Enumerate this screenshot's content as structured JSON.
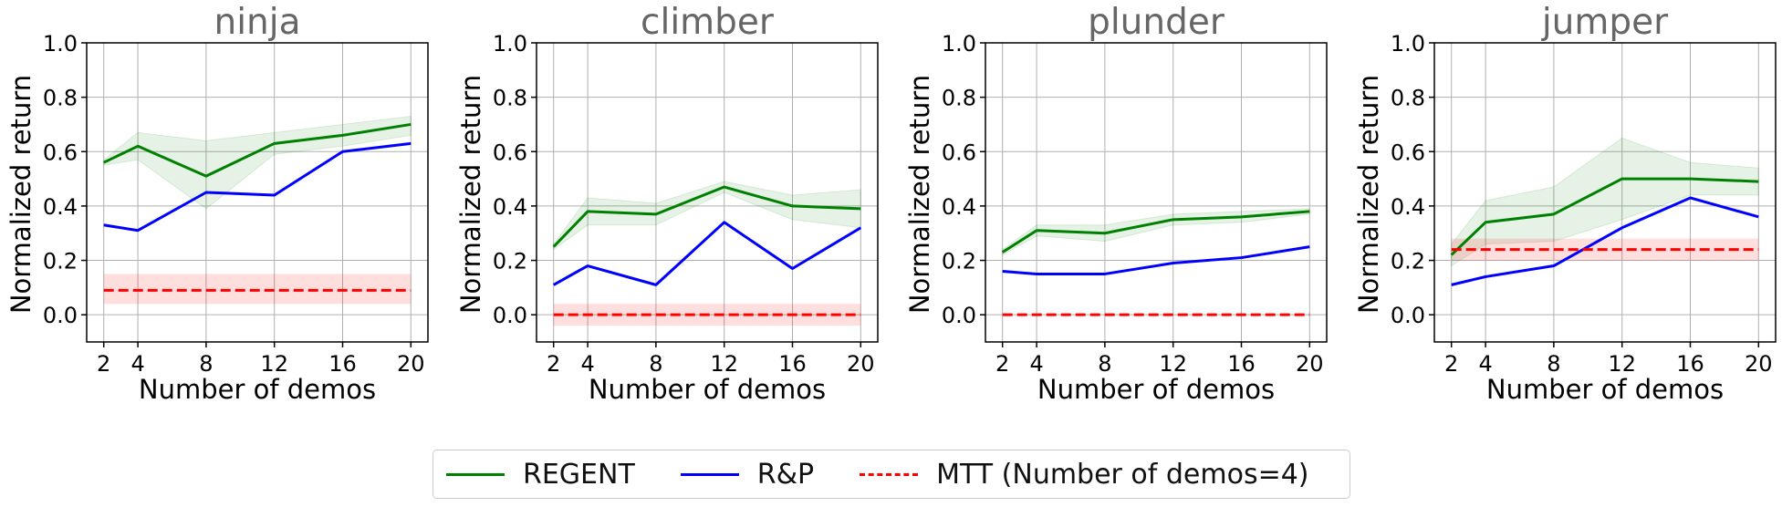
{
  "colors": {
    "regent": "#008000",
    "rp": "#0000ff",
    "mtt": "#ff0000",
    "title": "#666666",
    "grid": "#b0b0b0"
  },
  "legend": {
    "items": [
      {
        "label": "REGENT",
        "color": "#008000",
        "style": "solid"
      },
      {
        "label": "R&P",
        "color": "#0000ff",
        "style": "solid"
      },
      {
        "label": "MTT (Number of demos=4)",
        "color": "#ff0000",
        "style": "dashed"
      }
    ],
    "placement": "bottom-center"
  },
  "chart_data": [
    {
      "type": "line",
      "title": "ninja",
      "xlabel": "Number of demos",
      "ylabel": "Normalized return",
      "x": [
        2,
        4,
        8,
        12,
        16,
        20
      ],
      "xticks": [
        "2",
        "4",
        "8",
        "12",
        "16",
        "20"
      ],
      "yticks": [
        "0.0",
        "0.2",
        "0.4",
        "0.6",
        "0.8",
        "1.0"
      ],
      "xlim": [
        1,
        21
      ],
      "ylim": [
        -0.1,
        1.0
      ],
      "grid": true,
      "series": [
        {
          "name": "REGENT",
          "values": [
            0.56,
            0.62,
            0.51,
            0.63,
            0.66,
            0.7
          ],
          "band_low": [
            0.55,
            0.57,
            0.39,
            0.59,
            0.62,
            0.66
          ],
          "band_high": [
            0.57,
            0.67,
            0.64,
            0.67,
            0.7,
            0.73
          ]
        },
        {
          "name": "R&P",
          "values": [
            0.33,
            0.31,
            0.45,
            0.44,
            0.6,
            0.63
          ]
        },
        {
          "name": "MTT (Number of demos=4)",
          "constant": 0.09,
          "band_low": 0.04,
          "band_high": 0.15
        }
      ]
    },
    {
      "type": "line",
      "title": "climber",
      "xlabel": "Number of demos",
      "ylabel": "Normalized return",
      "x": [
        2,
        4,
        8,
        12,
        16,
        20
      ],
      "xticks": [
        "2",
        "4",
        "8",
        "12",
        "16",
        "20"
      ],
      "yticks": [
        "0.0",
        "0.2",
        "0.4",
        "0.6",
        "0.8",
        "1.0"
      ],
      "xlim": [
        1,
        21
      ],
      "ylim": [
        -0.1,
        1.0
      ],
      "grid": true,
      "series": [
        {
          "name": "REGENT",
          "values": [
            0.25,
            0.38,
            0.37,
            0.47,
            0.4,
            0.39
          ],
          "band_low": [
            0.24,
            0.33,
            0.33,
            0.45,
            0.35,
            0.32
          ],
          "band_high": [
            0.26,
            0.43,
            0.41,
            0.49,
            0.44,
            0.46
          ]
        },
        {
          "name": "R&P",
          "values": [
            0.11,
            0.18,
            0.11,
            0.34,
            0.17,
            0.32
          ]
        },
        {
          "name": "MTT (Number of demos=4)",
          "constant": 0.0,
          "band_low": -0.04,
          "band_high": 0.04
        }
      ]
    },
    {
      "type": "line",
      "title": "plunder",
      "xlabel": "Number of demos",
      "ylabel": "Normalized return",
      "x": [
        2,
        4,
        8,
        12,
        16,
        20
      ],
      "xticks": [
        "2",
        "4",
        "8",
        "12",
        "16",
        "20"
      ],
      "yticks": [
        "0.0",
        "0.2",
        "0.4",
        "0.6",
        "0.8",
        "1.0"
      ],
      "xlim": [
        1,
        21
      ],
      "ylim": [
        -0.1,
        1.0
      ],
      "grid": true,
      "series": [
        {
          "name": "REGENT",
          "values": [
            0.23,
            0.31,
            0.3,
            0.35,
            0.36,
            0.38
          ],
          "band_low": [
            0.22,
            0.29,
            0.27,
            0.33,
            0.34,
            0.37
          ],
          "band_high": [
            0.24,
            0.33,
            0.33,
            0.37,
            0.38,
            0.39
          ]
        },
        {
          "name": "R&P",
          "values": [
            0.16,
            0.15,
            0.15,
            0.19,
            0.21,
            0.25
          ]
        },
        {
          "name": "MTT (Number of demos=4)",
          "constant": 0.0,
          "band_low": 0.0,
          "band_high": 0.0
        }
      ]
    },
    {
      "type": "line",
      "title": "jumper",
      "xlabel": "Number of demos",
      "ylabel": "Normalized return",
      "x": [
        2,
        4,
        8,
        12,
        16,
        20
      ],
      "xticks": [
        "2",
        "4",
        "8",
        "12",
        "16",
        "20"
      ],
      "yticks": [
        "0.0",
        "0.2",
        "0.4",
        "0.6",
        "0.8",
        "1.0"
      ],
      "xlim": [
        1,
        21
      ],
      "ylim": [
        -0.1,
        1.0
      ],
      "grid": true,
      "series": [
        {
          "name": "REGENT",
          "values": [
            0.22,
            0.34,
            0.37,
            0.5,
            0.5,
            0.49
          ],
          "band_low": [
            0.18,
            0.26,
            0.27,
            0.35,
            0.44,
            0.44
          ],
          "band_high": [
            0.26,
            0.42,
            0.47,
            0.65,
            0.56,
            0.54
          ]
        },
        {
          "name": "R&P",
          "values": [
            0.11,
            0.14,
            0.18,
            0.32,
            0.43,
            0.36
          ]
        },
        {
          "name": "MTT (Number of demos=4)",
          "constant": 0.24,
          "band_low": 0.2,
          "band_high": 0.28
        }
      ]
    }
  ]
}
